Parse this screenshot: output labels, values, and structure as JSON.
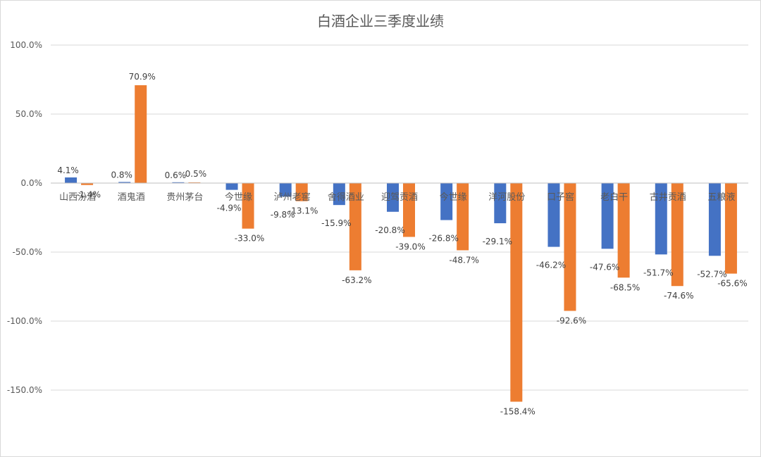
{
  "colors": {
    "series1": "#4472C4",
    "series2": "#ED7D31"
  },
  "chart_data": {
    "type": "bar",
    "title": "白酒企业三季度业绩",
    "xlabel": "",
    "ylabel": "",
    "ylim": [
      -175,
      100
    ],
    "yticks": [
      100,
      50,
      0,
      -50,
      -100,
      -150
    ],
    "ytick_labels": [
      "100.0%",
      "50.0%",
      "0.0%",
      "-50.0%",
      "-100.0%",
      "-150.0%"
    ],
    "grid": true,
    "legend": "none",
    "categories": [
      "山西汾酒",
      "酒鬼酒",
      "贵州茅台",
      "今世缘",
      "泸州老窖",
      "舍得酒业",
      "迎驾贡酒",
      "今世缘",
      "洋河股份",
      "口子窖",
      "老白干",
      "古井贡酒",
      "五粮液"
    ],
    "series": [
      {
        "values": [
          4.1,
          0.8,
          0.6,
          -4.9,
          -9.8,
          -15.9,
          -20.8,
          -26.8,
          -29.1,
          -46.2,
          -47.6,
          -51.7,
          -52.7
        ],
        "labels": [
          "4.1%",
          "0.8%",
          "0.6%",
          "-4.9%",
          "-9.8%",
          "-15.9%",
          "-20.8%",
          "-26.8%",
          "-29.1%",
          "-46.2%",
          "-47.6%",
          "-51.7%",
          "-52.7%"
        ]
      },
      {
        "values": [
          -1.4,
          70.9,
          0.5,
          -33.0,
          -13.1,
          -63.2,
          -39.0,
          -48.7,
          -158.4,
          -92.6,
          -68.5,
          -74.6,
          -65.6
        ],
        "labels": [
          "-1.4%",
          "70.9%",
          "0.5%",
          "-33.0%",
          "-13.1%",
          "-63.2%",
          "-39.0%",
          "-48.7%",
          "-158.4%",
          "-92.6%",
          "-68.5%",
          "-74.6%",
          "-65.6%"
        ]
      }
    ]
  }
}
